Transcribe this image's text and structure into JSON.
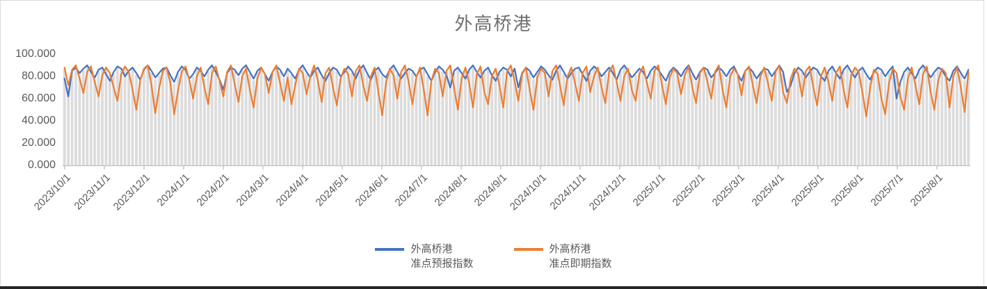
{
  "chart_data": {
    "type": "line",
    "title": "外高桥港",
    "grid": false,
    "legend_position": "bottom",
    "ylim": [
      0,
      100
    ],
    "y_ticks": {
      "values": [
        0,
        20,
        40,
        60,
        80,
        100
      ],
      "labels": [
        "0.000",
        "20.000",
        "40.000",
        "60.000",
        "80.000",
        "100.000"
      ]
    },
    "x_tick_labels": [
      "2023/10/1",
      "2023/11/1",
      "2023/12/1",
      "2024/1/1",
      "2024/2/1",
      "2024/3/1",
      "2024/4/1",
      "2024/5/1",
      "2024/6/1",
      "2024/7/1",
      "2024/8/1",
      "2024/9/1",
      "2024/10/1",
      "2024/11/1",
      "2024/12/1",
      "2025/1/1",
      "2025/2/1",
      "2025/3/1",
      "2025/4/1",
      "2025/5/1",
      "2025/6/1",
      "2025/7/1",
      "2025/8/1"
    ],
    "background_bars": {
      "color": "#dcdcdc",
      "note": "gray daily columns behind the lines; tops track the upper line values"
    },
    "series": [
      {
        "name": "外高桥港\n准点预报指数",
        "color": "#4472C4",
        "values": [
          78,
          62,
          85,
          88,
          83,
          87,
          90,
          84,
          79,
          86,
          88,
          82,
          76,
          84,
          89,
          87,
          80,
          85,
          88,
          83,
          77,
          86,
          90,
          85,
          79,
          83,
          87,
          88,
          81,
          75,
          84,
          89,
          86,
          78,
          82,
          88,
          85,
          80,
          86,
          90,
          84,
          77,
          68,
          83,
          88,
          86,
          81,
          87,
          90,
          84,
          78,
          85,
          88,
          82,
          76,
          84,
          89,
          86,
          80,
          87,
          83,
          78,
          86,
          90,
          84,
          79,
          85,
          88,
          81,
          76,
          83,
          88,
          86,
          80,
          84,
          89,
          85,
          78,
          86,
          90,
          83,
          77,
          85,
          88,
          82,
          79,
          86,
          90,
          84,
          78,
          83,
          87,
          85,
          80,
          86,
          88,
          82,
          76,
          84,
          89,
          86,
          81,
          70,
          85,
          88,
          83,
          78,
          86,
          90,
          84,
          79,
          85,
          88,
          81,
          76,
          84,
          88,
          86,
          80,
          87,
          70,
          83,
          88,
          85,
          79,
          84,
          89,
          86,
          81,
          77,
          85,
          90,
          84,
          78,
          83,
          87,
          88,
          82,
          76,
          85,
          89,
          86,
          80,
          84,
          88,
          83,
          77,
          86,
          90,
          85,
          79,
          83,
          87,
          84,
          78,
          85,
          89,
          86,
          81,
          76,
          84,
          88,
          85,
          80,
          86,
          90,
          83,
          77,
          84,
          88,
          86,
          79,
          83,
          88,
          85,
          80,
          86,
          89,
          82,
          76,
          85,
          88,
          84,
          78,
          83,
          87,
          86,
          80,
          85,
          90,
          84,
          66,
          72,
          83,
          88,
          85,
          79,
          84,
          88,
          86,
          80,
          76,
          85,
          89,
          83,
          78,
          86,
          90,
          84,
          79,
          85,
          88,
          82,
          77,
          84,
          88,
          86,
          80,
          85,
          89,
          60,
          75,
          84,
          88,
          83,
          78,
          86,
          90,
          85,
          79,
          84,
          88,
          86,
          80,
          76,
          85,
          89,
          83,
          78,
          86
        ]
      },
      {
        "name": "外高桥港\n准点即期指数",
        "color": "#ED7D31",
        "values": [
          88,
          72,
          86,
          90,
          78,
          65,
          84,
          89,
          75,
          62,
          81,
          88,
          83,
          70,
          58,
          82,
          89,
          84,
          68,
          50,
          76,
          87,
          90,
          72,
          47,
          69,
          85,
          88,
          74,
          46,
          67,
          84,
          89,
          77,
          60,
          80,
          88,
          70,
          55,
          83,
          89,
          76,
          62,
          84,
          90,
          73,
          57,
          80,
          87,
          68,
          52,
          78,
          88,
          82,
          65,
          84,
          90,
          74,
          58,
          79,
          55,
          72,
          87,
          83,
          64,
          80,
          90,
          76,
          57,
          83,
          88,
          70,
          54,
          78,
          87,
          82,
          62,
          85,
          90,
          72,
          58,
          80,
          88,
          66,
          45,
          74,
          87,
          81,
          60,
          84,
          90,
          75,
          55,
          79,
          88,
          68,
          45,
          76,
          87,
          83,
          62,
          85,
          90,
          70,
          50,
          78,
          88,
          74,
          52,
          82,
          89,
          66,
          55,
          80,
          87,
          72,
          52,
          84,
          90,
          76,
          58,
          82,
          88,
          68,
          50,
          79,
          87,
          83,
          62,
          85,
          90,
          72,
          54,
          80,
          88,
          74,
          58,
          83,
          89,
          66,
          80,
          88,
          70,
          56,
          84,
          90,
          75,
          58,
          80,
          87,
          68,
          58,
          82,
          89,
          74,
          60,
          85,
          90,
          72,
          55,
          79,
          87,
          83,
          64,
          81,
          89,
          70,
          56,
          83,
          88,
          75,
          60,
          84,
          90,
          68,
          52,
          80,
          87,
          82,
          63,
          85,
          89,
          72,
          56,
          80,
          88,
          74,
          58,
          84,
          90,
          66,
          56,
          78,
          87,
          82,
          62,
          85,
          89,
          70,
          54,
          80,
          88,
          75,
          58,
          83,
          89,
          68,
          52,
          81,
          88,
          84,
          65,
          44,
          70,
          86,
          82,
          60,
          46,
          74,
          87,
          83,
          62,
          50,
          78,
          88,
          72,
          55,
          82,
          89,
          66,
          50,
          76,
          87,
          83,
          52,
          80,
          88,
          70,
          48,
          84
        ]
      }
    ],
    "axis_color": "#bfbfbf",
    "label_color": "#595959"
  }
}
